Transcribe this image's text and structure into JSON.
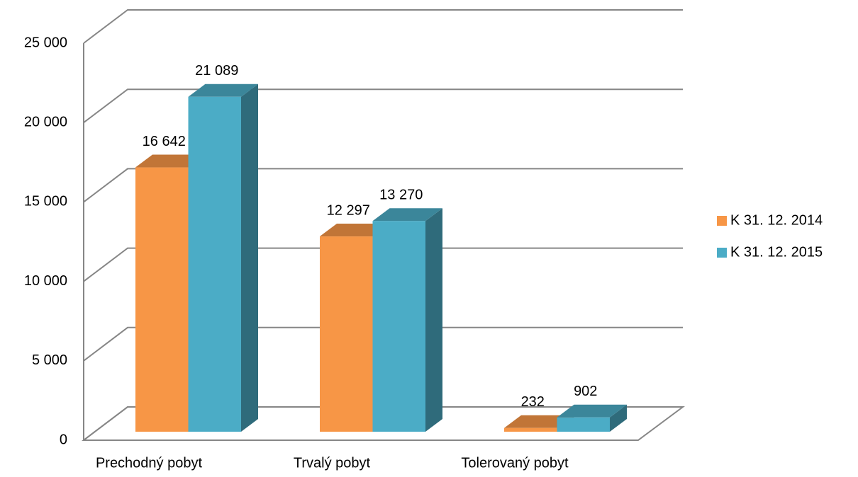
{
  "chart_data": {
    "type": "bar3d",
    "categories": [
      "Prechodný pobyt",
      "Trvalý pobyt",
      "Tolerovaný pobyt"
    ],
    "series": [
      {
        "name": "K 31. 12. 2014",
        "color": "#f79646",
        "values": [
          16642,
          12297,
          232
        ],
        "value_labels": [
          "16 642",
          "12 297",
          "232"
        ]
      },
      {
        "name": "K 31. 12. 2015",
        "color": "#4bacc6",
        "values": [
          21089,
          13270,
          902
        ],
        "value_labels": [
          "21 089",
          "13 270",
          "902"
        ]
      }
    ],
    "ylim": [
      0,
      25000
    ],
    "yticks": [
      {
        "value": 0,
        "label": "0"
      },
      {
        "value": 5000,
        "label": "5 000"
      },
      {
        "value": 10000,
        "label": "10 000"
      },
      {
        "value": 15000,
        "label": "15 000"
      },
      {
        "value": 20000,
        "label": "20 000"
      },
      {
        "value": 25000,
        "label": "25 000"
      }
    ],
    "grid": true,
    "legend": "right"
  }
}
